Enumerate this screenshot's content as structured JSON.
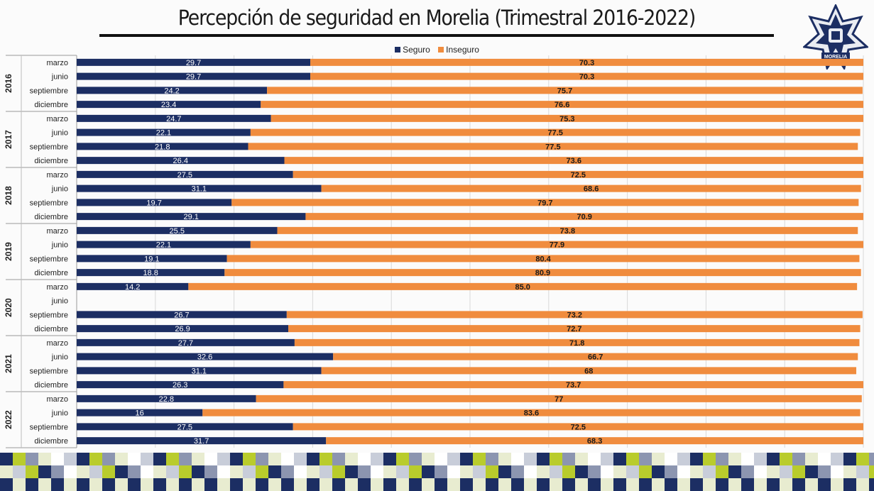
{
  "title": "Percepción de seguridad en Morelia (Trimestral 2016-2022)",
  "badge": {
    "text": "MORELIA"
  },
  "colors": {
    "seguro": "#1c2e63",
    "inseguro": "#f08c3e",
    "grid": "#d9d9d9",
    "footer_green": "#b9cc2c",
    "footer_navy": "#1c2e63"
  },
  "chart_data": {
    "type": "bar",
    "orientation": "horizontal",
    "stacked": true,
    "legend_position": "top-center",
    "grid": true,
    "xlim": [
      0,
      100
    ],
    "groups": [
      {
        "label": "2016",
        "categories": [
          "marzo",
          "junio",
          "septiembre",
          "diciembre"
        ]
      },
      {
        "label": "2017",
        "categories": [
          "marzo",
          "junio",
          "septiembre",
          "diciembre"
        ]
      },
      {
        "label": "2018",
        "categories": [
          "marzo",
          "junio",
          "septiembre",
          "diciembre"
        ]
      },
      {
        "label": "2019",
        "categories": [
          "marzo",
          "junio",
          "septiembre",
          "diciembre"
        ]
      },
      {
        "label": "2020",
        "categories": [
          "marzo",
          "junio",
          "septiembre",
          "diciembre"
        ]
      },
      {
        "label": "2021",
        "categories": [
          "marzo",
          "junio",
          "septiembre",
          "diciembre"
        ]
      },
      {
        "label": "2022",
        "categories": [
          "marzo",
          "junio",
          "septiembre",
          "diciembre"
        ]
      }
    ],
    "series": [
      {
        "name": "Seguro",
        "values": [
          29.7,
          29.7,
          24.2,
          23.4,
          24.7,
          22.1,
          21.8,
          26.4,
          27.5,
          31.1,
          19.7,
          29.1,
          25.5,
          22.1,
          19.1,
          18.8,
          14.2,
          null,
          26.7,
          26.9,
          27.7,
          32.6,
          31.1,
          26.3,
          22.8,
          16,
          27.5,
          31.7
        ],
        "value_labels": [
          "29.7",
          "29.7",
          "24.2",
          "23.4",
          "24.7",
          "22.1",
          "21.8",
          "26.4",
          "27.5",
          "31.1",
          "19.7",
          "29.1",
          "25.5",
          "22.1",
          "19.1",
          "18.8",
          "14.2",
          "",
          "26.7",
          "26.9",
          "27.7",
          "32.6",
          "31.1",
          "26.3",
          "22.8",
          "16",
          "27.5",
          "31.7"
        ]
      },
      {
        "name": "Inseguro",
        "values": [
          70.3,
          70.3,
          75.7,
          76.6,
          75.3,
          77.5,
          77.5,
          73.6,
          72.5,
          68.6,
          79.7,
          70.9,
          73.8,
          77.9,
          80.4,
          80.9,
          85.0,
          null,
          73.2,
          72.7,
          71.8,
          66.7,
          68,
          73.7,
          77,
          83.6,
          72.5,
          68.3
        ],
        "value_labels": [
          "70.3",
          "70.3",
          "75.7",
          "76.6",
          "75.3",
          "77.5",
          "77.5",
          "73.6",
          "72.5",
          "68.6",
          "79.7",
          "70.9",
          "73.8",
          "77.9",
          "80.4",
          "80.9",
          "85.0",
          "",
          "73.2",
          "72.7",
          "71.8",
          "66.7",
          "68",
          "73.7",
          "77",
          "83.6",
          "72.5",
          "68.3"
        ]
      }
    ]
  }
}
